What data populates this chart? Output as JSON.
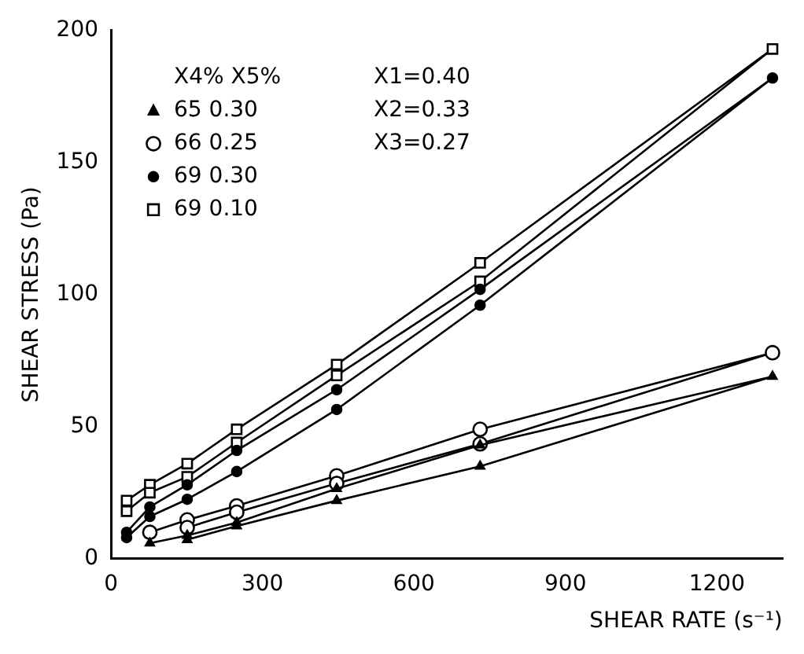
{
  "chart_data": {
    "type": "line",
    "xlabel": "SHEAR RATE (s⁻¹)",
    "ylabel": "SHEAR STRESS (Pa)",
    "xlim": [
      0,
      1330
    ],
    "ylim": [
      0,
      200
    ],
    "xticks": [
      0,
      300,
      600,
      900,
      1200
    ],
    "yticks": [
      0,
      50,
      100,
      150,
      200
    ],
    "grid": false,
    "legend": "top left",
    "legend_title": "X4% X5%",
    "annotations": [
      "X1=0.40",
      "X2=0.33",
      "X3=0.27"
    ],
    "line_style": "solid",
    "series": [
      {
        "name": "65 0.30",
        "color": "#000000",
        "marker": "triangle",
        "x": [
          77,
          151,
          249,
          447,
          731,
          1310,
          731,
          447,
          249,
          151
        ],
        "values": [
          5.9,
          8.8,
          13.7,
          26.5,
          43,
          69,
          35,
          22,
          12.4,
          7.2
        ]
      },
      {
        "name": "66 0.25",
        "color": "#000000",
        "marker": "circle",
        "x": [
          77,
          151,
          249,
          447,
          731,
          1310,
          731,
          447,
          249,
          151
        ],
        "values": [
          10,
          14.7,
          20,
          31.4,
          49,
          78,
          43.5,
          28.5,
          17.6,
          11.8
        ]
      },
      {
        "name": "69 0.30",
        "color": "#000000",
        "marker": "circle",
        "x": [
          31,
          77,
          151,
          249,
          447,
          731,
          1310,
          731,
          447,
          249,
          151,
          77,
          31
        ],
        "values": [
          10,
          19.6,
          28,
          41,
          64,
          102,
          182,
          96,
          56.5,
          33,
          22.5,
          16,
          8
        ]
      },
      {
        "name": "69 0.10",
        "color": "#000000",
        "marker": "square",
        "x": [
          31,
          77,
          151,
          249,
          447,
          731,
          1310,
          731,
          447,
          249,
          151,
          77,
          31
        ],
        "values": [
          22,
          28,
          36,
          49,
          73.5,
          112,
          193,
          105,
          69.4,
          44,
          31,
          25,
          18
        ]
      }
    ]
  }
}
